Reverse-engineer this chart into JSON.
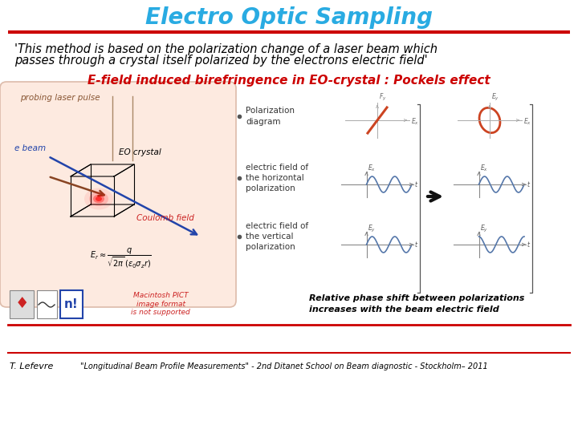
{
  "title": "Electro Optic Sampling",
  "title_color": "#29ABE2",
  "title_fontsize": 20,
  "subtitle_line1": "'This method is based on the polarization change of a laser beam which",
  "subtitle_line2": "passes through a crystal itself polarized by the electrons electric field'",
  "subtitle_fontsize": 10.5,
  "subtitle_color": "#000000",
  "section_title": "E-field induced birefringence in EO-crystal : Pockels effect",
  "section_title_color": "#CC0000",
  "section_title_fontsize": 11,
  "label_probing": "probing laser pulse",
  "label_eo": "EO crystal",
  "label_coulomb": "Coulomb field",
  "label_ebeam": "e beam",
  "bullet1": "Polarization\ndiagram",
  "bullet2": "electric field of\nthe horizontal\npolarization",
  "bullet3": "electric field of\nthe vertical\npolarization",
  "phase_shift_text": "Relative phase shift between polarizations\nincreases with the beam electric field",
  "footer_author": "T. Lefevre",
  "footer_ref": "\"Longitudinal Beam Profile Measurements\" - 2nd Ditanet School on Beam diagnostic - Stockholm– 2011",
  "bg_color": "#FFFFFF",
  "red_line_color": "#CC0000",
  "crystal_box_color": "#FFD8C8",
  "wave_color": "#5577AA",
  "polarization_color": "#CC4422"
}
